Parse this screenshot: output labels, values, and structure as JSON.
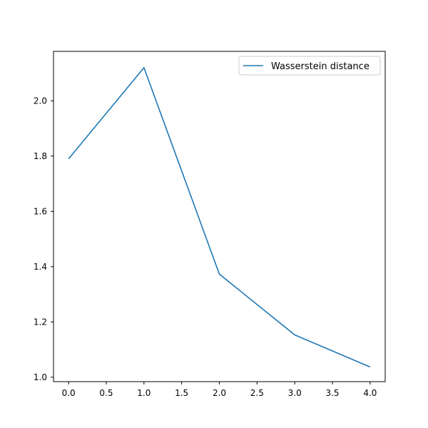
{
  "chart_data": {
    "type": "line",
    "title": "",
    "xlabel": "",
    "ylabel": "",
    "x": [
      0,
      1,
      2,
      3,
      4
    ],
    "series": [
      {
        "name": "Wasserstein distance",
        "color": "#1f77b4",
        "values": [
          1.79,
          2.12,
          1.373,
          1.153,
          1.037
        ]
      }
    ],
    "xlim": [
      -0.2,
      4.2
    ],
    "ylim": [
      0.984,
      2.179
    ],
    "xticks": [
      0.0,
      0.5,
      1.0,
      1.5,
      2.0,
      2.5,
      3.0,
      3.5,
      4.0
    ],
    "xtick_labels": [
      "0.0",
      "0.5",
      "1.0",
      "1.5",
      "2.0",
      "2.5",
      "3.0",
      "3.5",
      "4.0"
    ],
    "yticks": [
      1.0,
      1.2,
      1.4,
      1.6,
      1.8,
      2.0
    ],
    "ytick_labels": [
      "1.0",
      "1.2",
      "1.4",
      "1.6",
      "1.8",
      "2.0"
    ],
    "grid": false,
    "legend_position": "top-right"
  }
}
